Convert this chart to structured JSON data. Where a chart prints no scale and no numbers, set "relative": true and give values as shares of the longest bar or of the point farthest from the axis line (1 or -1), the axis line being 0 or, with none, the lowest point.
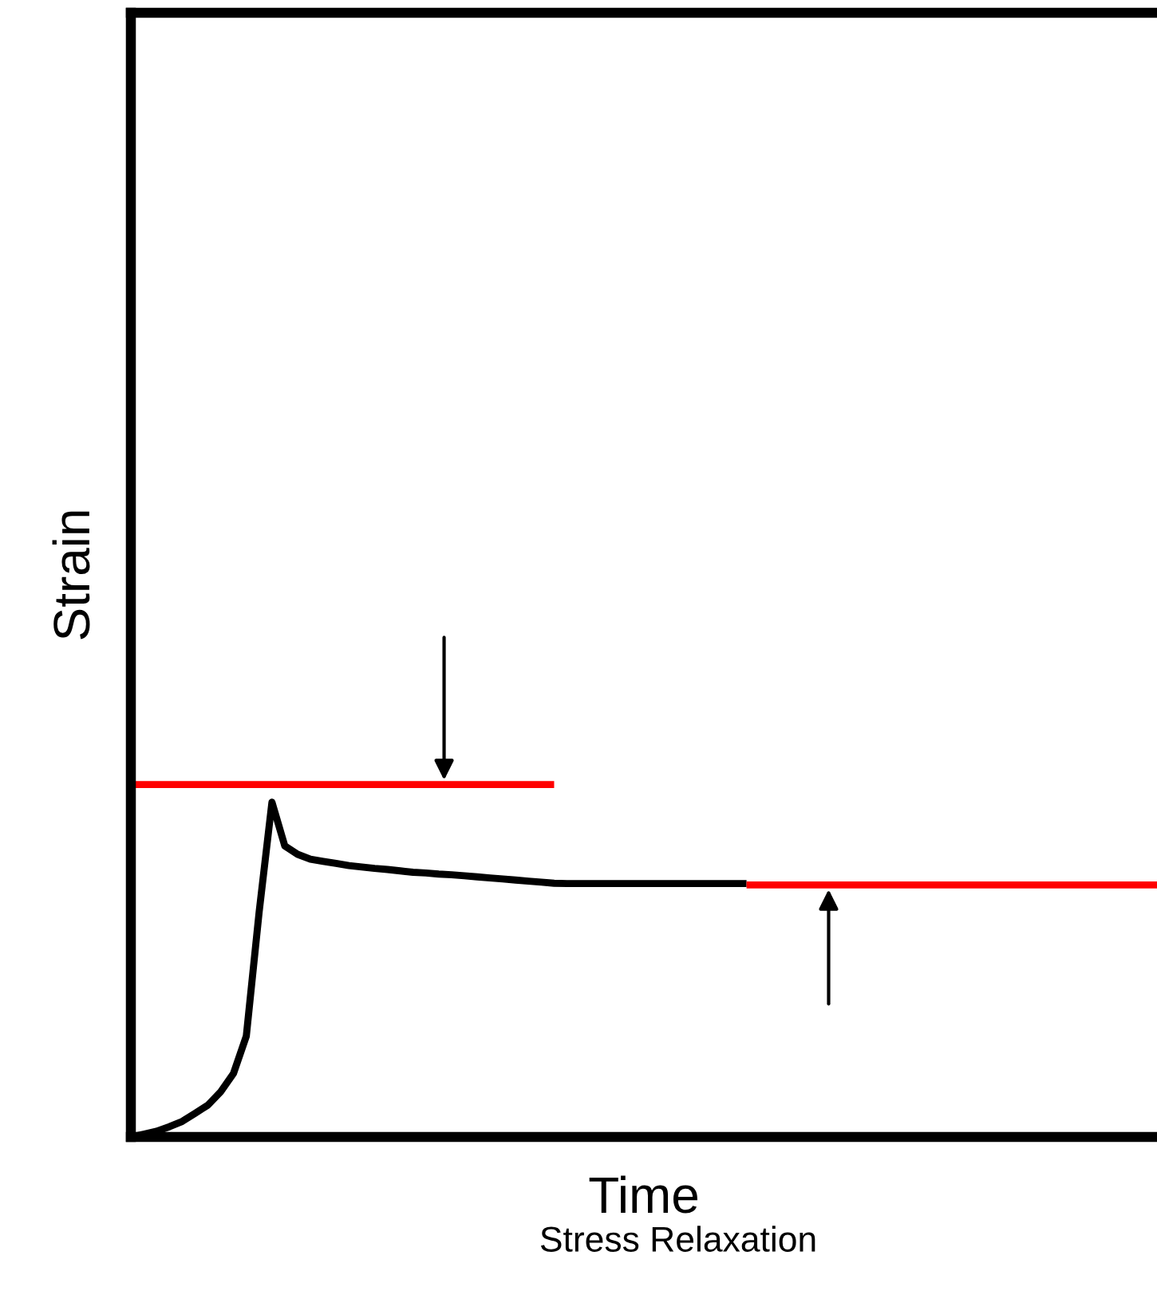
{
  "chart_data": {
    "type": "line",
    "relative": true,
    "xlabel": "Time",
    "ylabel": "Strain",
    "annotations": [
      "Stress Relaxation"
    ],
    "categories": [
      null,
      null,
      null,
      null,
      null,
      null,
      null,
      null,
      null,
      null,
      null,
      null,
      null,
      null,
      null,
      null,
      null,
      null,
      null,
      null,
      null,
      null,
      null,
      null,
      null,
      null,
      null,
      null,
      null,
      null,
      null,
      null,
      null,
      null,
      null,
      null,
      null,
      null,
      null,
      null,
      null,
      null,
      null,
      null,
      null,
      null,
      null,
      null,
      null,
      null,
      null,
      null,
      null,
      null,
      null,
      null,
      null,
      null,
      null,
      null,
      null,
      null,
      null,
      null,
      null,
      null,
      null,
      null,
      null,
      null,
      null,
      null,
      null,
      null,
      null,
      null,
      null,
      null,
      null,
      null,
      null
    ],
    "series": [
      {
        "color": "#000000",
        "values": [
          0,
          0.008,
          0.016,
          0.029,
          0.044,
          0.067,
          0.09,
          0.128,
          0.18,
          0.286,
          0.638,
          0.95,
          0.826,
          0.802,
          0.788,
          0.782,
          0.776,
          0.77,
          0.766,
          0.762,
          0.759,
          0.755,
          0.751,
          0.749,
          0.746,
          0.744,
          0.741,
          0.738,
          0.735,
          0.732,
          0.729,
          0.726,
          0.723,
          0.72,
          0.719,
          0.719,
          0.719,
          0.719,
          0.719,
          0.719,
          0.719,
          0.719,
          0.719,
          0.719,
          0.719,
          0.719,
          0.719,
          0.719,
          0.719,
          null,
          null,
          null,
          null,
          null,
          null,
          null,
          null,
          null,
          null,
          null,
          null,
          null,
          null,
          null,
          null,
          null,
          null,
          null,
          null,
          null,
          null,
          null,
          null,
          null,
          null,
          null,
          null,
          null,
          null,
          null,
          null
        ]
      },
      {
        "color": "#ff0000",
        "values": [
          1,
          1,
          1,
          1,
          1,
          1,
          1,
          1,
          1,
          1,
          1,
          1,
          1,
          1,
          1,
          1,
          1,
          1,
          1,
          1,
          1,
          1,
          1,
          1,
          1,
          1,
          1,
          1,
          1,
          1,
          1,
          1,
          1,
          1,
          null,
          null,
          null,
          null,
          null,
          null,
          null,
          null,
          null,
          null,
          null,
          null,
          null,
          null,
          null,
          null,
          null,
          null,
          null,
          null,
          null,
          null,
          null,
          null,
          null,
          null,
          null,
          null,
          null,
          null,
          null,
          null,
          null,
          null,
          null,
          null,
          null,
          null,
          null,
          null,
          null,
          null,
          null,
          null,
          null,
          null,
          null
        ]
      },
      {
        "color": "#ff0000",
        "values": [
          null,
          null,
          null,
          null,
          null,
          null,
          null,
          null,
          null,
          null,
          null,
          null,
          null,
          null,
          null,
          null,
          null,
          null,
          null,
          null,
          null,
          null,
          null,
          null,
          null,
          null,
          null,
          null,
          null,
          null,
          null,
          null,
          null,
          null,
          null,
          null,
          null,
          null,
          null,
          null,
          null,
          null,
          null,
          null,
          null,
          null,
          null,
          null,
          0.715,
          0.715,
          0.715,
          0.715,
          0.715,
          0.715,
          0.715,
          0.715,
          0.715,
          0.715,
          0.715,
          0.715,
          0.715,
          0.715,
          0.715,
          0.715,
          0.715,
          0.715,
          0.715,
          0.715,
          0.715,
          0.715,
          0.715,
          0.715,
          0.715,
          0.715,
          0.715,
          0.715,
          0.715,
          0.715,
          0.715,
          0.715,
          0.715
        ]
      }
    ],
    "legend": false,
    "marker": "none",
    "line_style": "solid"
  }
}
